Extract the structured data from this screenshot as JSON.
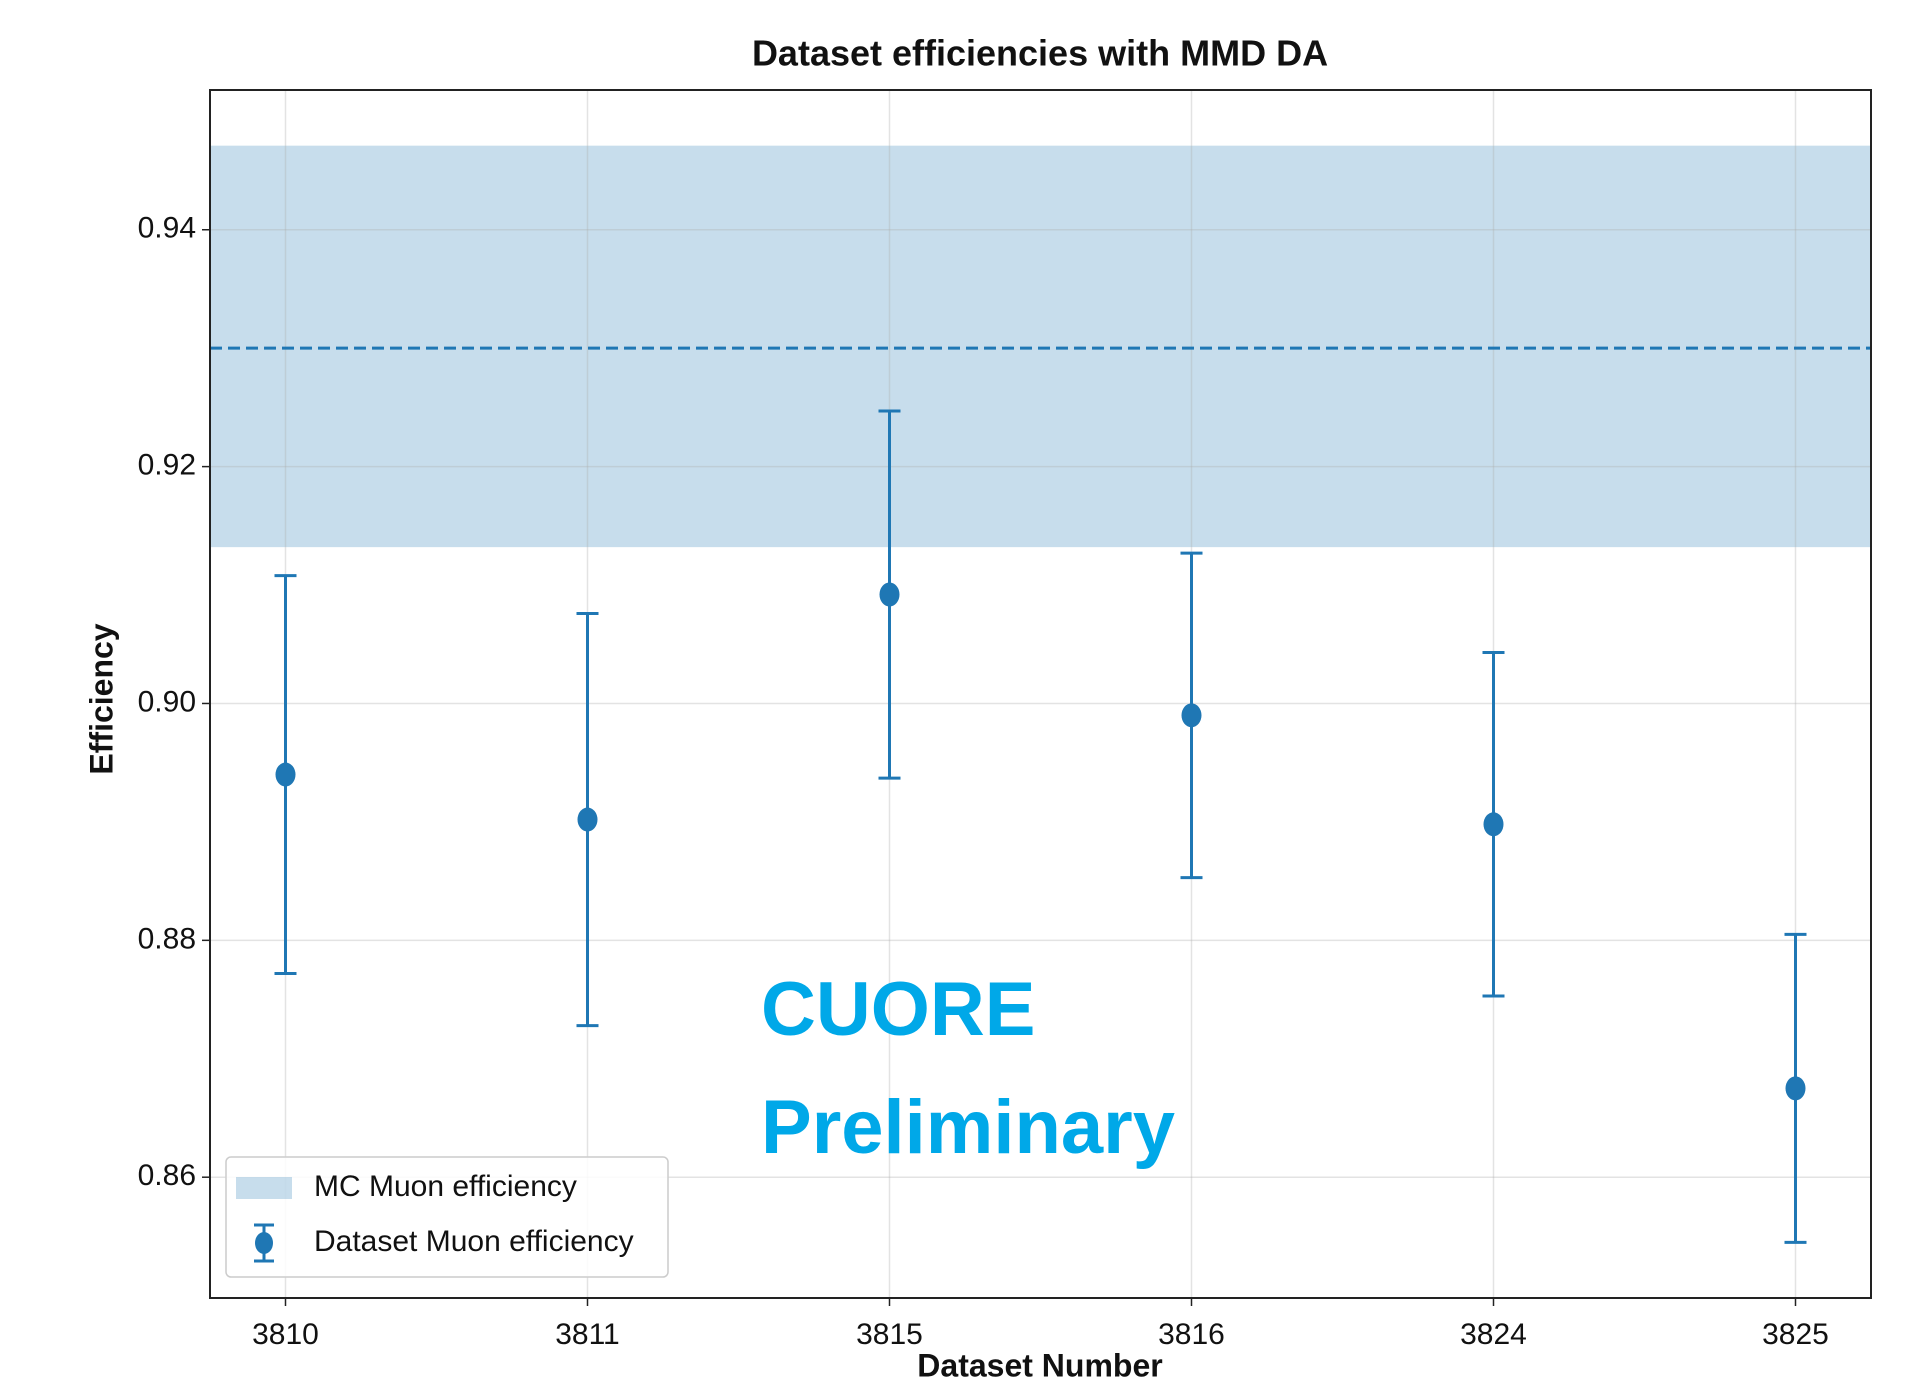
{
  "chart_data": {
    "type": "errorbar",
    "title": "Dataset efficiencies with MMD DA",
    "x_label": "Dataset Number",
    "y_label": "Efficiency",
    "annotation": "CUORE Preliminary",
    "categories": [
      "3810",
      "3811",
      "3815",
      "3816",
      "3824",
      "3825"
    ],
    "series": [
      {
        "name": "Dataset Muon efficiency",
        "color": "#1f77b4",
        "values": [
          0.894,
          0.8902,
          0.9092,
          0.899,
          0.8898,
          0.8675
        ],
        "errors": [
          0.0168,
          0.0174,
          0.0155,
          0.0137,
          0.0145,
          0.013
        ]
      }
    ],
    "band": {
      "name": "MC Muon efficiency",
      "color": "#1f77b4",
      "low": 0.9132,
      "high": 0.9471,
      "center": 0.93
    },
    "ylim": [
      0.8498,
      0.9518
    ],
    "yticks": [
      {
        "value": 0.86,
        "label": "0.86"
      },
      {
        "value": 0.88,
        "label": "0.88"
      },
      {
        "value": 0.9,
        "label": "0.90"
      },
      {
        "value": 0.92,
        "label": "0.92"
      },
      {
        "value": 0.94,
        "label": "0.94"
      }
    ],
    "grid": true,
    "legend": "lower left"
  }
}
